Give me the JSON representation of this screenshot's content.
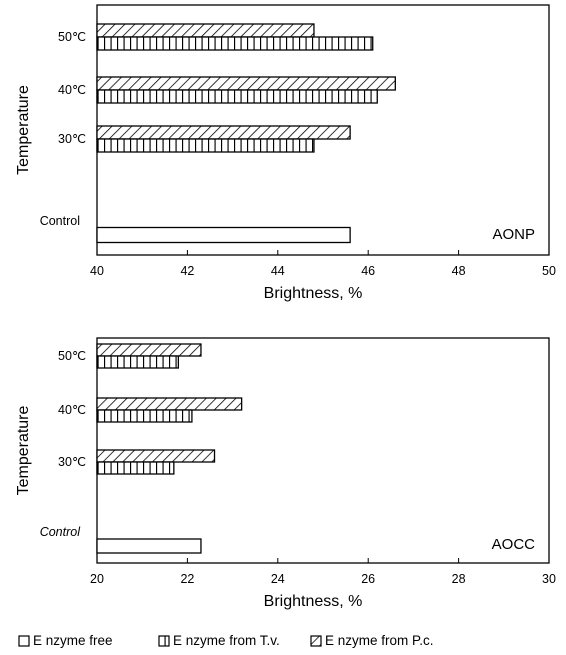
{
  "legend": [
    {
      "name": "Enzyme free",
      "label": "E nzyme free",
      "pattern": "empty-box-icon"
    },
    {
      "name": "Enzyme from T.v.",
      "label": "E nzyme from T.v.",
      "pattern": "vertical-hatch-icon"
    },
    {
      "name": "Enzyme from P.c.",
      "label": "E nzyme from P.c.",
      "pattern": "diagonal-hatch-icon"
    }
  ],
  "chart_data": [
    {
      "type": "bar",
      "orientation": "horizontal",
      "panel_label": "AONP",
      "xlabel": "Brightness, %",
      "ylabel": "Temperature",
      "xlim": [
        40,
        50
      ],
      "xticks": [
        "40",
        "42",
        "44",
        "46",
        "48",
        "50"
      ],
      "categories": [
        "Control",
        "30℃",
        "40℃",
        "50℃"
      ],
      "series": [
        {
          "name": "Enzyme free",
          "values": [
            45.6,
            null,
            null,
            null
          ]
        },
        {
          "name": "Enzyme from T.v.",
          "values": [
            null,
            44.8,
            46.2,
            46.1
          ]
        },
        {
          "name": "Enzyme from P.c.",
          "values": [
            null,
            45.6,
            46.6,
            44.8
          ]
        }
      ]
    },
    {
      "type": "bar",
      "orientation": "horizontal",
      "panel_label": "AOCC",
      "xlabel": "Brightness, %",
      "ylabel": "Temperature",
      "xlim": [
        20,
        30
      ],
      "xticks": [
        "20",
        "22",
        "24",
        "26",
        "28",
        "30"
      ],
      "categories": [
        "Control",
        "30℃",
        "40℃",
        "50℃"
      ],
      "series": [
        {
          "name": "Enzyme free",
          "values": [
            22.3,
            null,
            null,
            null
          ]
        },
        {
          "name": "Enzyme from T.v.",
          "values": [
            null,
            21.7,
            22.1,
            21.8
          ]
        },
        {
          "name": "Enzyme from P.c.",
          "values": [
            null,
            22.6,
            23.2,
            22.3
          ]
        }
      ]
    }
  ]
}
